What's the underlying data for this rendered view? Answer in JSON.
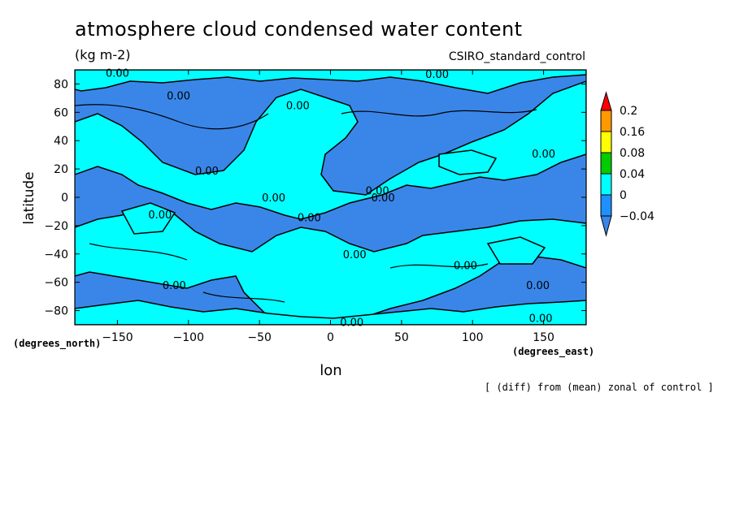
{
  "chart_data": {
    "type": "heatmap",
    "title": "atmosphere cloud condensed water content",
    "units": "(kg m-2)",
    "model": "CSIRO_standard_control",
    "xlabel": "lon",
    "ylabel": "latitude",
    "x_unit": "(degrees_east)",
    "y_unit": "(degrees_north)",
    "xlim": [
      -180,
      180
    ],
    "ylim": [
      -90,
      90
    ],
    "x_ticks": [
      -150,
      -100,
      -50,
      0,
      50,
      100,
      150
    ],
    "y_ticks": [
      -80,
      -60,
      -40,
      -20,
      0,
      20,
      40,
      60,
      80
    ],
    "x_tick_labels": [
      "−150",
      "−100",
      "−50",
      "0",
      "50",
      "100",
      "150"
    ],
    "y_tick_labels": [
      "−80",
      "−60",
      "−40",
      "−20",
      "0",
      "20",
      "40",
      "60",
      "80"
    ],
    "colorbar": {
      "levels": [
        -0.04,
        0,
        0.04,
        0.08,
        0.16,
        0.2
      ],
      "labels": [
        "−0.04",
        "0",
        "0.04",
        "0.08",
        "0.16",
        "0.2"
      ],
      "colors": [
        "#1e90ff",
        "#00ffff",
        "#00cc00",
        "#ffff00",
        "#ff9900",
        "#ff0000"
      ],
      "below_color": "#3a86e8",
      "above_color": "#ff0000"
    },
    "contour_label": "0.00",
    "contour_label_positions": [
      [
        -150,
        88
      ],
      [
        75,
        87
      ],
      [
        -107,
        72
      ],
      [
        -23,
        65
      ],
      [
        -87,
        19
      ],
      [
        150,
        31
      ],
      [
        -40,
        0
      ],
      [
        33,
        5
      ],
      [
        37,
        0
      ],
      [
        -15,
        -14
      ],
      [
        -120,
        -12
      ],
      [
        17,
        -40
      ],
      [
        95,
        -48
      ],
      [
        -110,
        -62
      ],
      [
        146,
        -62
      ],
      [
        15,
        -88
      ],
      [
        148,
        -85
      ]
    ],
    "field_summary": "zonal anomaly pattern: negative (blue) and positive (cyan) regions separated by the 0.00 contour"
  },
  "note": "[ (diff) from (mean) zonal of control ]"
}
